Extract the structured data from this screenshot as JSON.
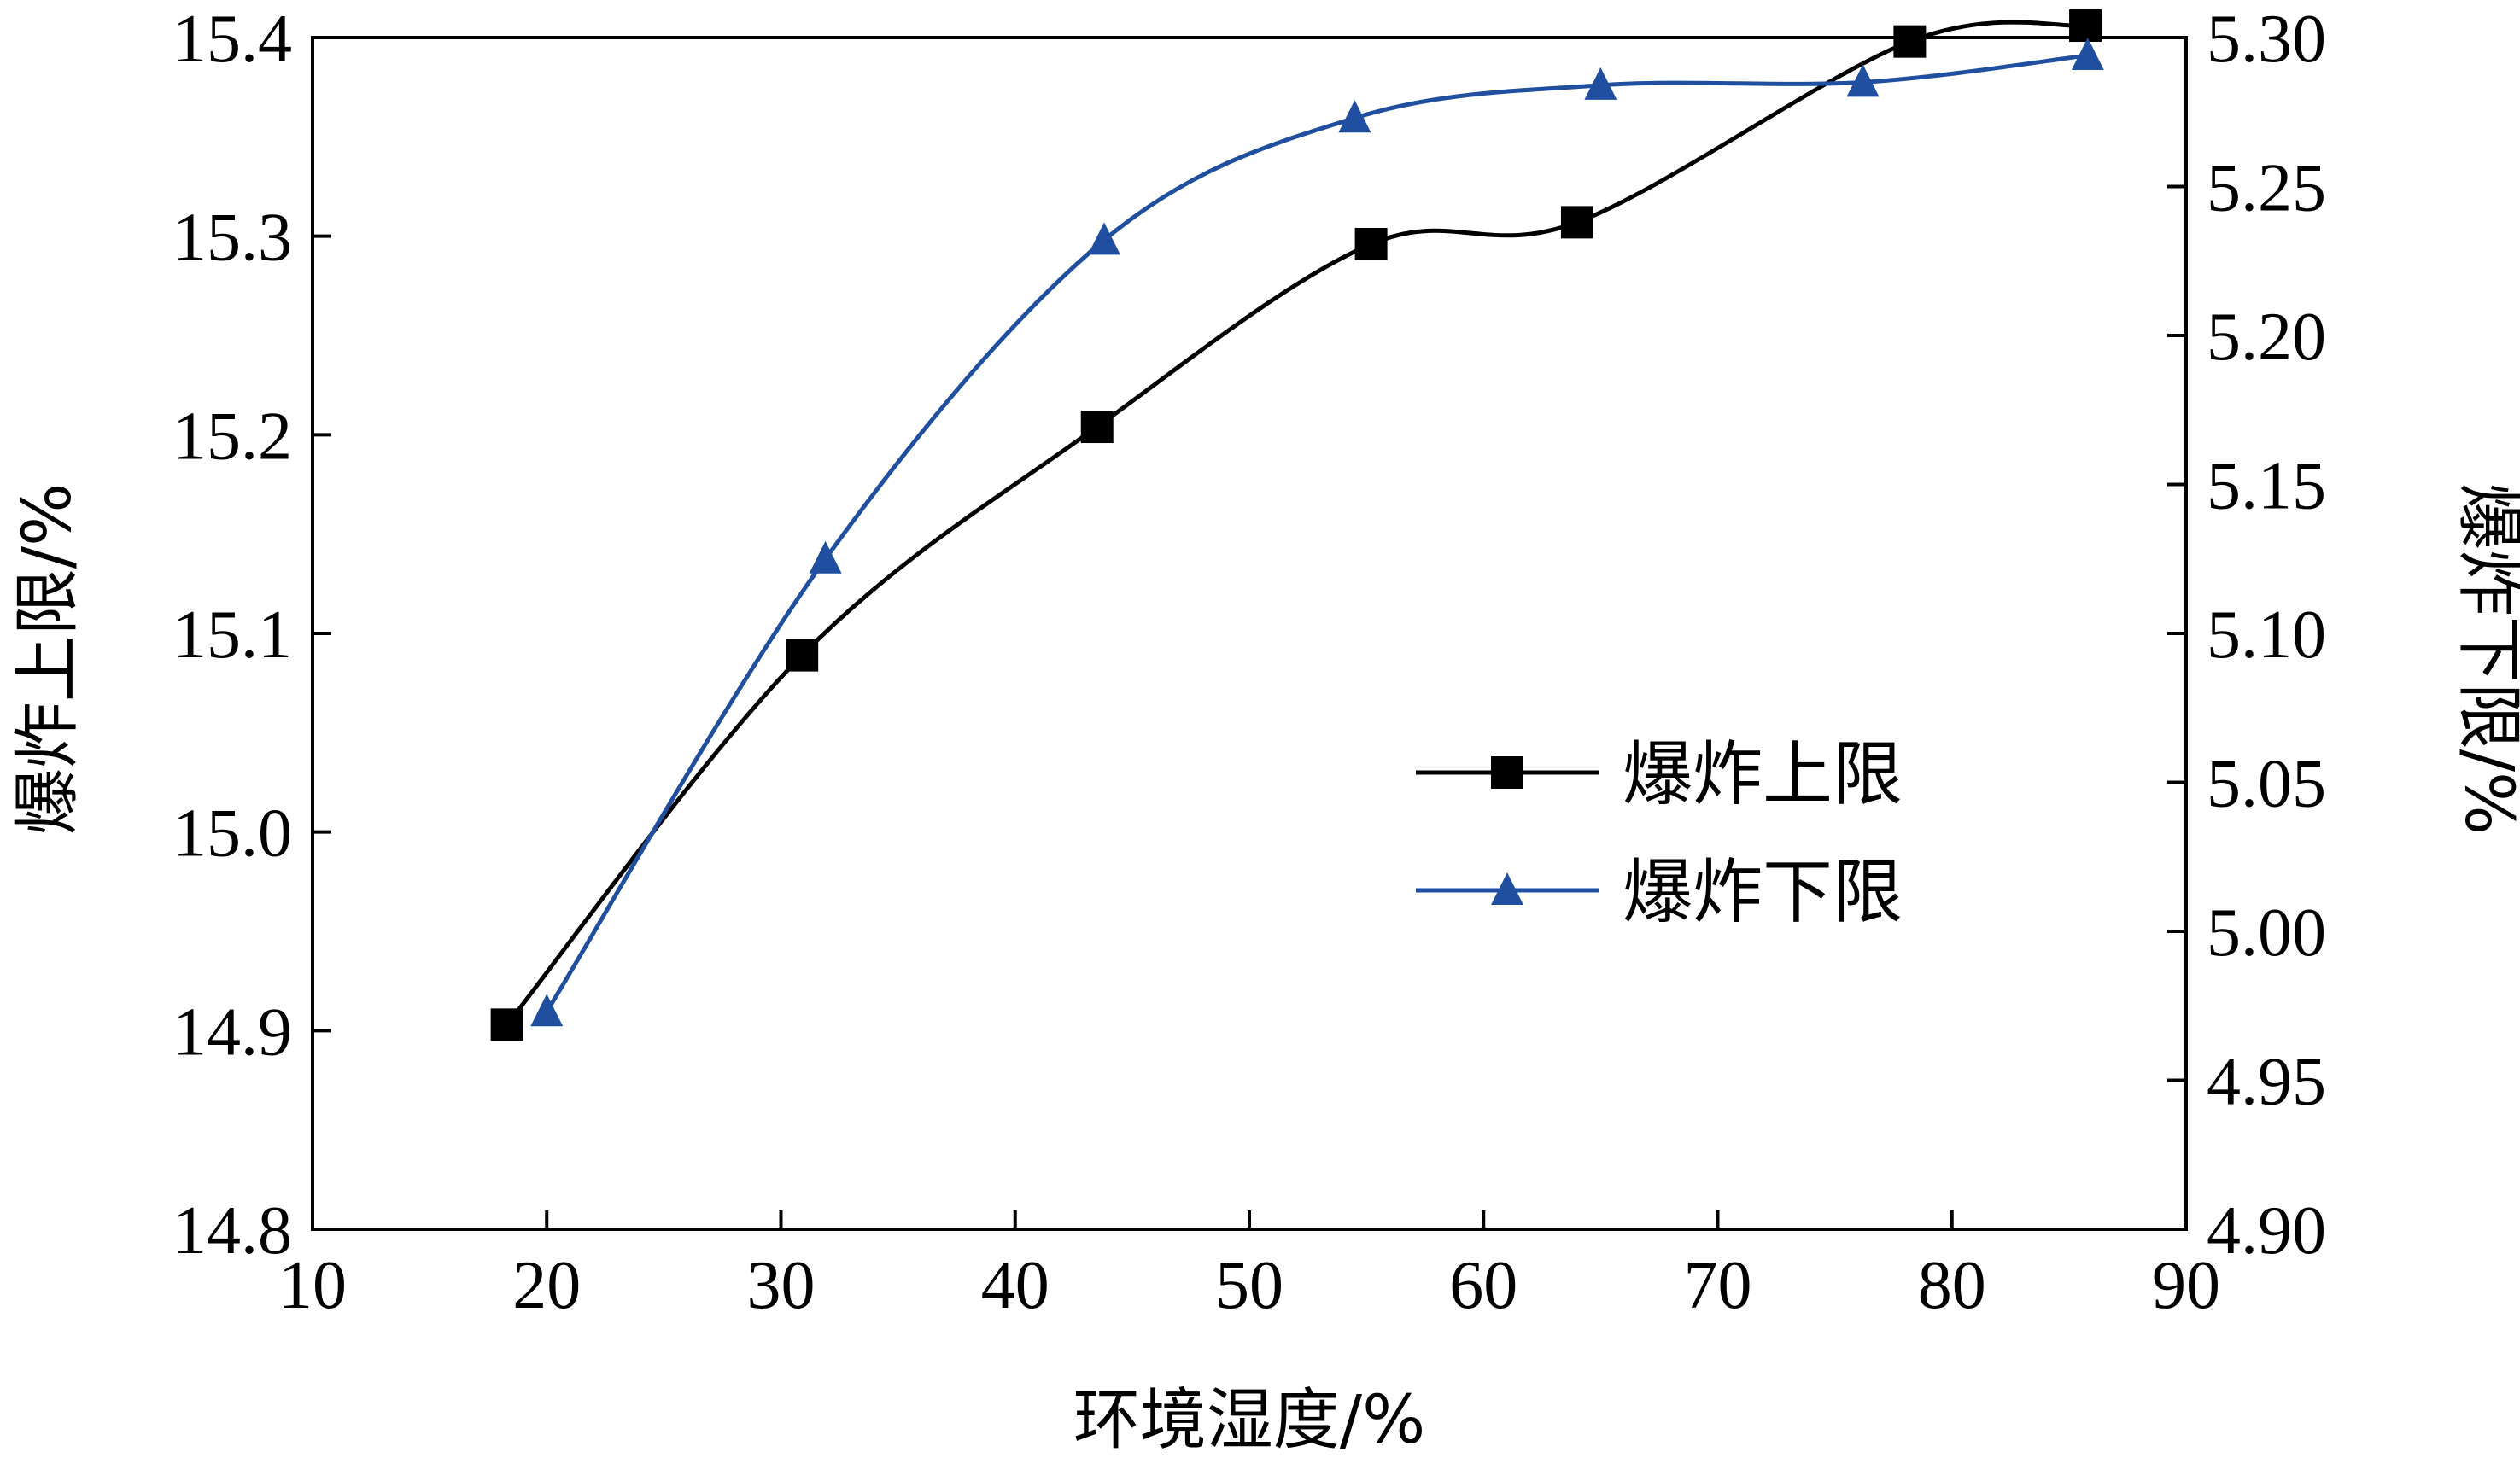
{
  "chart_data": {
    "type": "line",
    "xlabel": "环境湿度/%",
    "ylabel_left": "爆炸上限/%",
    "ylabel_right": "爆炸下限/%",
    "xlim": [
      10,
      90
    ],
    "ylim_left": [
      14.8,
      15.4
    ],
    "ylim_right": [
      4.9,
      5.3
    ],
    "x_ticks": [
      "10",
      "20",
      "30",
      "40",
      "50",
      "60",
      "70",
      "80",
      "90"
    ],
    "y_left_ticks": [
      "14.8",
      "14.9",
      "15.0",
      "15.1",
      "15.2",
      "15.3",
      "15.4"
    ],
    "y_right_ticks": [
      "4.90",
      "4.95",
      "5.00",
      "5.05",
      "5.10",
      "5.15",
      "5.20",
      "5.25",
      "5.30"
    ],
    "grid": false,
    "legend_position": "center-right",
    "series": [
      {
        "name": "爆炸上限",
        "axis": "left",
        "marker": "square",
        "color": "#000000",
        "x": [
          18.3,
          30.9,
          43.5,
          55.2,
          64.0,
          78.2,
          85.7
        ],
        "y": [
          14.903,
          15.089,
          15.204,
          15.296,
          15.307,
          15.398,
          15.406
        ]
      },
      {
        "name": "爆炸下限",
        "axis": "right",
        "marker": "triangle",
        "color": "#1f4f9e",
        "x": [
          20.0,
          31.9,
          43.8,
          54.5,
          65.0,
          76.2,
          85.8
        ],
        "y": [
          4.973,
          5.125,
          5.232,
          5.273,
          5.284,
          5.285,
          5.294
        ]
      }
    ]
  }
}
